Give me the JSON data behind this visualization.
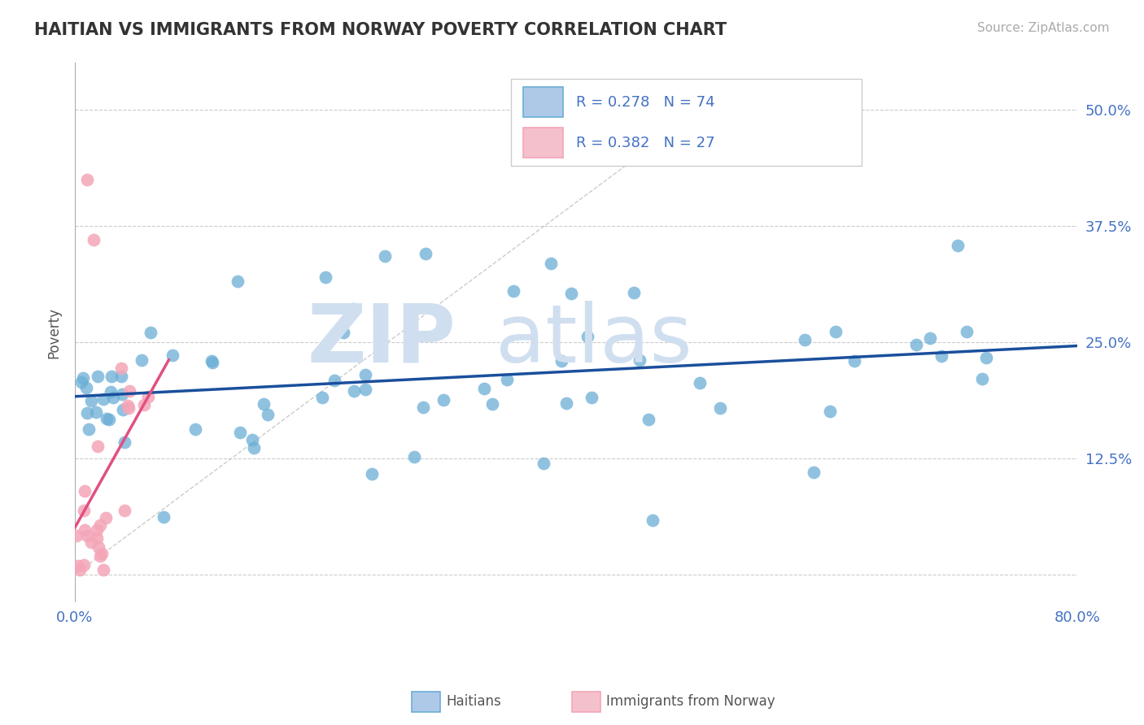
{
  "title": "HAITIAN VS IMMIGRANTS FROM NORWAY POVERTY CORRELATION CHART",
  "source": "Source: ZipAtlas.com",
  "ylabel": "Poverty",
  "xlim": [
    0.0,
    0.8
  ],
  "ylim": [
    -0.05,
    0.55
  ],
  "xticks": [
    0.0,
    0.1,
    0.2,
    0.3,
    0.4,
    0.5,
    0.6,
    0.7,
    0.8
  ],
  "xticklabels": [
    "0.0%",
    "",
    "",
    "",
    "",
    "",
    "",
    "",
    "80.0%"
  ],
  "ytick_positions": [
    0.0,
    0.125,
    0.25,
    0.375,
    0.5
  ],
  "yticklabels": [
    "",
    "12.5%",
    "25.0%",
    "37.5%",
    "50.0%"
  ],
  "legend1_label": "R = 0.278   N = 74",
  "legend2_label": "R = 0.382   N = 27",
  "haitian_color": "#6baed6",
  "haitian_edge_color": "#4a90c4",
  "norway_color": "#f4a6b8",
  "norway_edge_color": "#e07090",
  "trendline_haitian_color": "#1a4f9c",
  "trendline_norway_color": "#e05080",
  "watermark_color": "#d0dff0"
}
